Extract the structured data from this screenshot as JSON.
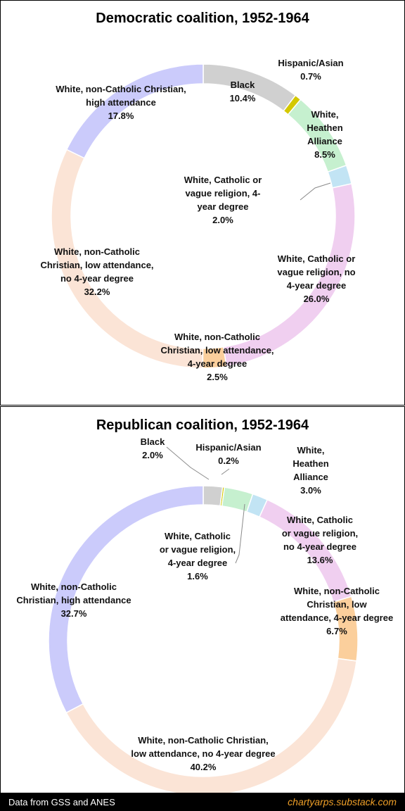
{
  "chart_data": [
    {
      "type": "pie",
      "title": "Democratic coalition, 1952-1964",
      "slices": [
        {
          "label": "Black",
          "value": 10.4,
          "value_label": "10.4%",
          "color": "#d0d0d0"
        },
        {
          "label": "Hispanic/Asian",
          "value": 0.7,
          "value_label": "0.7%",
          "color": "#d4c800"
        },
        {
          "label": "White, Heathen Alliance",
          "value": 8.5,
          "value_label": "8.5%",
          "color": "#c6f0cf"
        },
        {
          "label": "White, Catholic or vague religion, 4-year degree",
          "value": 2.0,
          "value_label": "2.0%",
          "color": "#c2e4f4"
        },
        {
          "label": "White, Catholic or vague religion, no 4-year degree",
          "value": 26.0,
          "value_label": "26.0%",
          "color": "#f0cff0"
        },
        {
          "label": "White, non-Catholic Christian, low attendance, 4-year degree",
          "value": 2.5,
          "value_label": "2.5%",
          "color": "#fbcf9c"
        },
        {
          "label": "White, non-Catholic Christian, low attendance, no 4-year degree",
          "value": 32.2,
          "value_label": "32.2%",
          "color": "#fbe4d6"
        },
        {
          "label": "White, non-Catholic Christian, high attendance",
          "value": 17.8,
          "value_label": "17.8%",
          "color": "#cbcbfb"
        }
      ],
      "label_lines": [
        [
          "Black",
          "10.4%"
        ],
        [
          "Hispanic/Asian",
          "0.7%"
        ],
        [
          "White,",
          "Heathen",
          "Alliance",
          "8.5%"
        ],
        [
          "White, Catholic or",
          "vague religion, 4-",
          "year degree",
          "2.0%"
        ],
        [
          "White, Catholic or",
          "vague religion, no",
          "4-year degree",
          "26.0%"
        ],
        [
          "White, non-Catholic",
          "Christian, low attendance,",
          "4-year degree",
          "2.5%"
        ],
        [
          "White, non-Catholic",
          "Christian, low attendance,",
          "no 4-year degree",
          "32.2%"
        ],
        [
          "White, non-Catholic Christian,",
          "high attendance",
          "17.8%"
        ]
      ]
    },
    {
      "type": "pie",
      "title": "Republican coalition, 1952-1964",
      "slices": [
        {
          "label": "Black",
          "value": 2.0,
          "value_label": "2.0%",
          "color": "#d0d0d0"
        },
        {
          "label": "Hispanic/Asian",
          "value": 0.2,
          "value_label": "0.2%",
          "color": "#d4c800"
        },
        {
          "label": "White, Heathen Alliance",
          "value": 3.0,
          "value_label": "3.0%",
          "color": "#c6f0cf"
        },
        {
          "label": "White, Catholic or vague religion, 4-year degree",
          "value": 1.6,
          "value_label": "1.6%",
          "color": "#c2e4f4"
        },
        {
          "label": "White, Catholic or vague religion, no 4-year degree",
          "value": 13.6,
          "value_label": "13.6%",
          "color": "#f0cff0"
        },
        {
          "label": "White, non-Catholic Christian, low attendance, 4-year degree",
          "value": 6.7,
          "value_label": "6.7%",
          "color": "#fbcf9c"
        },
        {
          "label": "White, non-Catholic Christian, low attendance, no 4-year degree",
          "value": 40.2,
          "value_label": "40.2%",
          "color": "#fbe4d6"
        },
        {
          "label": "White, non-Catholic Christian, high attendance",
          "value": 32.7,
          "value_label": "32.7%",
          "color": "#cbcbfb"
        }
      ],
      "label_lines": [
        [
          "Black",
          "2.0%"
        ],
        [
          "Hispanic/Asian",
          "0.2%"
        ],
        [
          "White,",
          "Heathen",
          "Alliance",
          "3.0%"
        ],
        [
          "White, Catholic",
          "or vague religion,",
          "4-year degree",
          "1.6%"
        ],
        [
          "White, Catholic",
          "or vague religion,",
          "no 4-year degree",
          "13.6%"
        ],
        [
          "White, non-Catholic",
          "Christian, low",
          "attendance, 4-year degree",
          "6.7%"
        ],
        [
          "White, non-Catholic Christian,",
          "low attendance, no 4-year degree",
          "40.2%"
        ],
        [
          "White, non-Catholic",
          "Christian, high attendance",
          "32.7%"
        ]
      ]
    }
  ],
  "footer": {
    "source": "Data from GSS and ANES",
    "site": "chartyarps.substack.com"
  }
}
